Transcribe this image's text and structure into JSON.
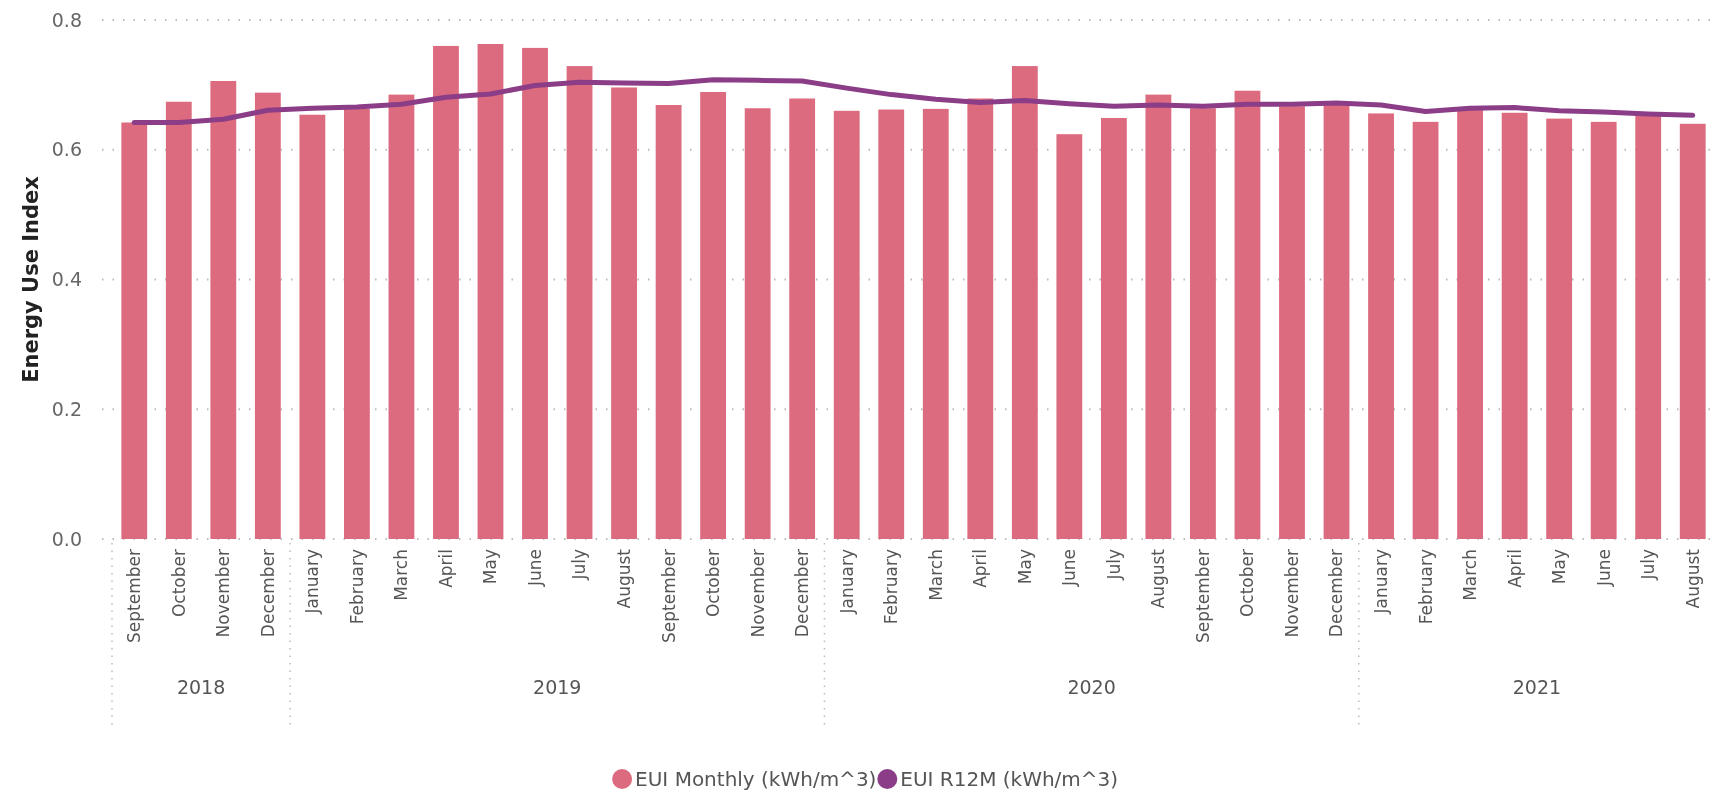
{
  "chart_data": {
    "type": "bar",
    "ylabel": "Energy Use Index",
    "categories": [
      "September",
      "October",
      "November",
      "December",
      "January",
      "February",
      "March",
      "April",
      "May",
      "June",
      "July",
      "August",
      "September",
      "October",
      "November",
      "December",
      "January",
      "February",
      "March",
      "April",
      "May",
      "June",
      "July",
      "August",
      "September",
      "October",
      "November",
      "December",
      "January",
      "February",
      "March",
      "April",
      "May",
      "June",
      "July",
      "August"
    ],
    "series": [
      {
        "name": "EUI Monthly (kWh/m^3)",
        "color": "#dd6b7f",
        "values": [
          0.642,
          0.674,
          0.706,
          0.688,
          0.654,
          0.663,
          0.685,
          0.76,
          0.763,
          0.757,
          0.729,
          0.696,
          0.669,
          0.689,
          0.664,
          0.679,
          0.66,
          0.662,
          0.663,
          0.679,
          0.729,
          0.624,
          0.649,
          0.685,
          0.664,
          0.691,
          0.667,
          0.67,
          0.656,
          0.643,
          0.662,
          0.657,
          0.648,
          0.643,
          0.654,
          0.64
        ]
      },
      {
        "name": "EUI R12M (kWh/m^3)",
        "type": "line",
        "color": "#8b3d88",
        "values": [
          0.642,
          0.642,
          0.647,
          0.661,
          0.664,
          0.666,
          0.67,
          0.681,
          0.686,
          0.699,
          0.704,
          0.703,
          0.702,
          0.708,
          0.707,
          0.706,
          0.695,
          0.685,
          0.678,
          0.673,
          0.676,
          0.671,
          0.667,
          0.669,
          0.667,
          0.67,
          0.67,
          0.672,
          0.669,
          0.659,
          0.664,
          0.665,
          0.66,
          0.658,
          0.655,
          0.653
        ]
      }
    ],
    "annotations": [
      "2018",
      "2019",
      "2020",
      "2021"
    ],
    "ylim": [
      0,
      0.8
    ],
    "yticks": [
      {
        "value": 0,
        "label": "0.0"
      },
      {
        "value": 0.2,
        "label": "0.2"
      },
      {
        "value": 0.4,
        "label": "0.4"
      },
      {
        "value": 0.6,
        "label": "0.6"
      },
      {
        "value": 0.8,
        "label": "0.8"
      }
    ],
    "grid": "y",
    "legend": "bottom"
  }
}
